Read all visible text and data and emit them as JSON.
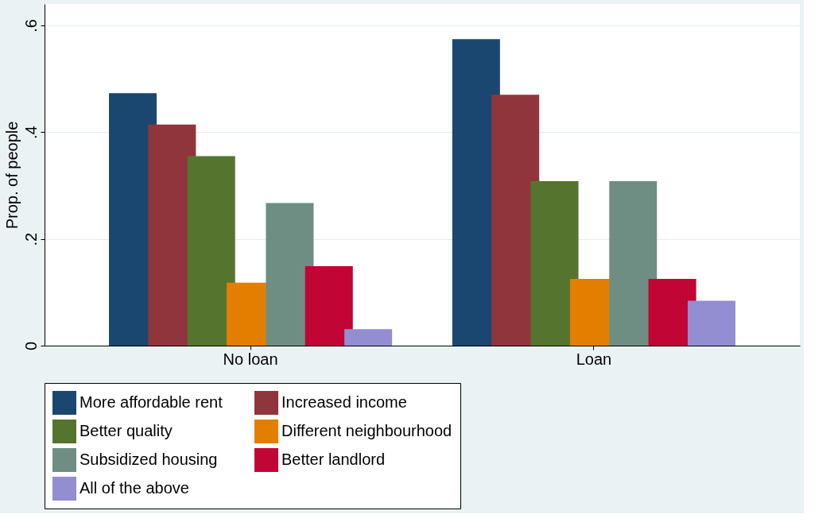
{
  "chart_data": {
    "type": "bar",
    "ylabel": "Prop. of people",
    "categories": [
      "No loan",
      "Loan"
    ],
    "series": [
      {
        "name": "More affordable rent",
        "color": "#1a476f",
        "values": [
          0.473,
          0.574
        ]
      },
      {
        "name": "Increased income",
        "color": "#90353b",
        "values": [
          0.414,
          0.47
        ]
      },
      {
        "name": "Better quality",
        "color": "#55752f",
        "values": [
          0.355,
          0.308
        ]
      },
      {
        "name": "Different neighbourhood",
        "color": "#e37e00",
        "values": [
          0.118,
          0.125
        ]
      },
      {
        "name": "Subsidized housing",
        "color": "#6e8e84",
        "values": [
          0.267,
          0.308
        ]
      },
      {
        "name": "Better landlord",
        "color": "#c10534",
        "values": [
          0.149,
          0.125
        ]
      },
      {
        "name": "All of the above",
        "color": "#938dd2",
        "values": [
          0.031,
          0.084
        ]
      }
    ],
    "ylim": [
      0,
      0.64
    ],
    "yticks": [
      0,
      {
        "value": 0.2,
        "label": ".2"
      },
      {
        "value": 0.4,
        "label": ".4"
      },
      {
        "value": 0.6,
        "label": ".6"
      }
    ],
    "grid": "y",
    "legend": "bottom"
  }
}
